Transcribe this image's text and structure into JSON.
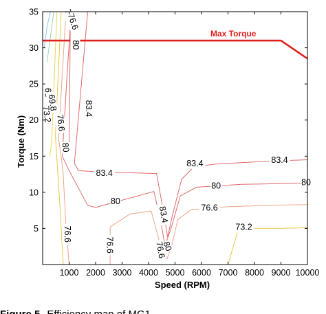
{
  "chart_data": {
    "type": "line",
    "xlabel": "Speed (RPM)",
    "ylabel": "Torque (Nm)",
    "xlim": [
      0,
      10000
    ],
    "ylim": [
      0,
      35
    ],
    "x_ticks": [
      1000,
      2000,
      3000,
      4000,
      5000,
      6000,
      7000,
      8000,
      9000,
      10000
    ],
    "y_ticks": [
      5,
      10,
      15,
      20,
      25,
      30,
      35
    ],
    "grid": false,
    "series": [
      {
        "name": "Max Torque",
        "color": "#e0201b",
        "x": [
          0,
          9000,
          10000
        ],
        "y": [
          31,
          31,
          28.5
        ]
      }
    ],
    "contours": [
      {
        "level": "83.4",
        "color": "#e06a6a",
        "points": [
          [
            1700,
            35
          ],
          [
            1200,
            14
          ],
          [
            1350,
            13
          ],
          [
            2200,
            12.8
          ],
          [
            4300,
            12.6
          ],
          [
            4580,
            7
          ],
          [
            4720,
            3.8
          ],
          [
            4880,
            6.5
          ],
          [
            5250,
            11.8
          ],
          [
            5700,
            13.5
          ],
          [
            6500,
            13.9
          ],
          [
            8500,
            14.3
          ],
          [
            10000,
            14.5
          ]
        ]
      },
      {
        "level": "83.4",
        "color": "#e06a6a",
        "points": [
          [
            1050,
            35
          ],
          [
            1000,
            16
          ]
        ]
      },
      {
        "level": "80",
        "color": "#e06a6a",
        "points": [
          [
            1080,
            35
          ],
          [
            900,
            25
          ],
          [
            740,
            15
          ],
          [
            1000,
            13
          ],
          [
            1700,
            8.2
          ],
          [
            2000,
            7.9
          ],
          [
            4200,
            10.1
          ],
          [
            4460,
            6
          ],
          [
            4620,
            2.6
          ],
          [
            4850,
            5
          ],
          [
            5200,
            9.5
          ],
          [
            5800,
            10.7
          ],
          [
            7500,
            11.1
          ],
          [
            9000,
            11.2
          ],
          [
            10000,
            11.3
          ]
        ]
      },
      {
        "level": "76.6",
        "color": "#f0a58a",
        "points": [
          [
            880,
            35
          ],
          [
            600,
            17.5
          ],
          [
            770,
            13
          ],
          [
            870,
            6
          ],
          [
            1000,
            -0.5
          ]
        ]
      },
      {
        "level": "76.6",
        "color": "#f0a58a",
        "points": [
          [
            2550,
            -0.5
          ],
          [
            2550,
            5.2
          ],
          [
            3300,
            7
          ],
          [
            4100,
            7.4
          ],
          [
            4350,
            4
          ],
          [
            4520,
            1.5
          ],
          [
            4700,
            0.8
          ],
          [
            4900,
            3
          ],
          [
            5100,
            6.2
          ],
          [
            5600,
            7.6
          ],
          [
            7000,
            8
          ],
          [
            8500,
            8.2
          ],
          [
            10000,
            8.3
          ]
        ]
      },
      {
        "level": "73.2",
        "color": "#e8c84a",
        "points": [
          [
            700,
            35
          ],
          [
            480,
            17.8
          ],
          [
            620,
            10
          ],
          [
            780,
            -0.5
          ]
        ]
      },
      {
        "level": "73.2",
        "color": "#e8c84a",
        "points": [
          [
            7000,
            -0.5
          ],
          [
            7400,
            5
          ],
          [
            9000,
            5
          ],
          [
            10000,
            5.1
          ]
        ]
      },
      {
        "level": "69.8",
        "color": "#e8d84a",
        "points": [
          [
            540,
            35
          ],
          [
            340,
            17
          ],
          [
            270,
            15
          ]
        ]
      },
      {
        "level": "66",
        "color": "#9ad6b8",
        "points": [
          [
            420,
            35
          ],
          [
            240,
            30
          ],
          [
            160,
            28
          ]
        ]
      },
      {
        "level": "",
        "color": "#8ac8ee",
        "points": [
          [
            300,
            35
          ],
          [
            170,
            33
          ],
          [
            60,
            30
          ],
          [
            0,
            30
          ]
        ]
      }
    ],
    "contour_labels": [
      {
        "text": "73.2",
        "x": 1010,
        "y": 34.2,
        "rotation": 72
      },
      {
        "text": "76.6",
        "x": 1130,
        "y": 33.6,
        "rotation": 72
      },
      {
        "text": "80",
        "x": 1230,
        "y": 30.4,
        "rotation": 90
      },
      {
        "text": "66",
        "x": 170,
        "y": 23.8,
        "rotation": 90
      },
      {
        "text": "69.8",
        "x": 350,
        "y": 22.4,
        "rotation": 82
      },
      {
        "text": "73.2",
        "x": 140,
        "y": 20.8,
        "rotation": 82
      },
      {
        "text": "76.6",
        "x": 670,
        "y": 19.6,
        "rotation": 84
      },
      {
        "text": "83.4",
        "x": 1720,
        "y": 21.6,
        "rotation": 90
      },
      {
        "text": "80",
        "x": 850,
        "y": 16.2,
        "rotation": 84
      },
      {
        "text": "83.4",
        "x": 2330,
        "y": 12.6,
        "rotation": 0
      },
      {
        "text": "83.4",
        "x": 5750,
        "y": 13.9,
        "rotation": 0
      },
      {
        "text": "83.4",
        "x": 8950,
        "y": 14.4,
        "rotation": 0
      },
      {
        "text": "80",
        "x": 2750,
        "y": 8.7,
        "rotation": 0
      },
      {
        "text": "80",
        "x": 6550,
        "y": 10.8,
        "rotation": 0
      },
      {
        "text": "80",
        "x": 9950,
        "y": 11.3,
        "rotation": 0
      },
      {
        "text": "76.6",
        "x": 6300,
        "y": 7.8,
        "rotation": 0
      },
      {
        "text": "73.2",
        "x": 7600,
        "y": 5.1,
        "rotation": 0
      },
      {
        "text": "76.6",
        "x": 920,
        "y": 4.2,
        "rotation": 90
      },
      {
        "text": "76.6",
        "x": 2520,
        "y": 2.7,
        "rotation": 90
      },
      {
        "text": "83.4",
        "x": 4550,
        "y": 6.9,
        "rotation": 80
      },
      {
        "text": "80",
        "x": 4700,
        "y": 2.5,
        "rotation": 70
      },
      {
        "text": "76.6",
        "x": 4430,
        "y": 2.0,
        "rotation": 80
      }
    ]
  },
  "caption": {
    "label": "Figure 5",
    "text": "Efficiency map of MG1"
  }
}
